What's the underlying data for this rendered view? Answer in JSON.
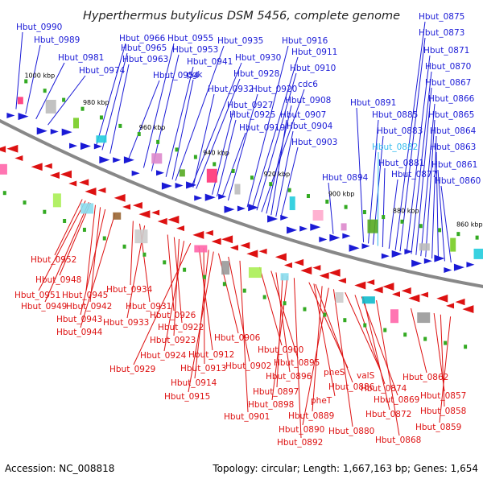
{
  "title": "Hyperthermus butylicus DSM 5456, complete genome",
  "footer": {
    "accession": "Accession: NC_008818",
    "summary": "Topology: circular; Length: 1,667,163 bp; Genes: 1,654"
  },
  "colors": {
    "forward": "#1a1ad6",
    "reverse": "#dd1111",
    "highlight": "#33bbee",
    "backbone": "#888888"
  },
  "ticks": [
    "1000 kbp",
    "980 kbp",
    "960 kbp",
    "940 kbp",
    "920 kbp",
    "900 kbp",
    "880 kbp",
    "860 kbp"
  ],
  "genes_top": [
    "Hbut_0990",
    "Hbut_0989",
    "Hbut_0981",
    "Hbut_0974",
    "Hbut_0966",
    "Hbut_0965",
    "Hbut_0963",
    "Hbut_0955",
    "Hbut_0953",
    "Hbut_0954",
    "Hbut_0941",
    "pgk",
    "Hbut_0935",
    "Hbut_0930",
    "Hbut_0928",
    "Hbut_0932",
    "Hbut_0927",
    "Hbut_0925",
    "Hbut_0919",
    "Hbut_0920",
    "Hbut_0916",
    "Hbut_0911",
    "Hbut_0910",
    "cdc6",
    "Hbut_0908",
    "Hbut_0907",
    "Hbut_0904",
    "Hbut_0903",
    "Hbut_0894",
    "Hbut_0891",
    "Hbut_0885",
    "Hbut_0883",
    "Hbut_0882",
    "Hbut_0881",
    "Hbut_0877",
    "Hbut_0875",
    "Hbut_0873",
    "Hbut_0871",
    "Hbut_0870",
    "Hbut_0867",
    "Hbut_0866",
    "Hbut_0865",
    "Hbut_0864",
    "Hbut_0863",
    "Hbut_0861",
    "Hbut_0860"
  ],
  "genes_bottom": [
    "Hbut_0952",
    "Hbut_0948",
    "Hbut_0951",
    "Hbut_0945",
    "Hbut_0949",
    "Hbut_0942",
    "Hbut_0934",
    "Hbut_0943",
    "Hbut_0931",
    "Hbut_0933",
    "Hbut_0926",
    "Hbut_0944",
    "Hbut_0922",
    "Hbut_0923",
    "Hbut_0924",
    "Hbut_0906",
    "Hbut_0912",
    "Hbut_0929",
    "Hbut_0913",
    "Hbut_0900",
    "Hbut_0902",
    "Hbut_0895",
    "Hbut_0914",
    "Hbut_0896",
    "pheS",
    "valS",
    "Hbut_0862",
    "Hbut_0886",
    "Hbut_0874",
    "Hbut_0897",
    "Hbut_0915",
    "Hbut_0898",
    "pheT",
    "Hbut_0869",
    "Hbut_0857",
    "Hbut_0901",
    "Hbut_0889",
    "Hbut_0872",
    "Hbut_0858",
    "Hbut_0890",
    "Hbut_0880",
    "Hbut_0859",
    "Hbut_0868",
    "Hbut_0892"
  ]
}
